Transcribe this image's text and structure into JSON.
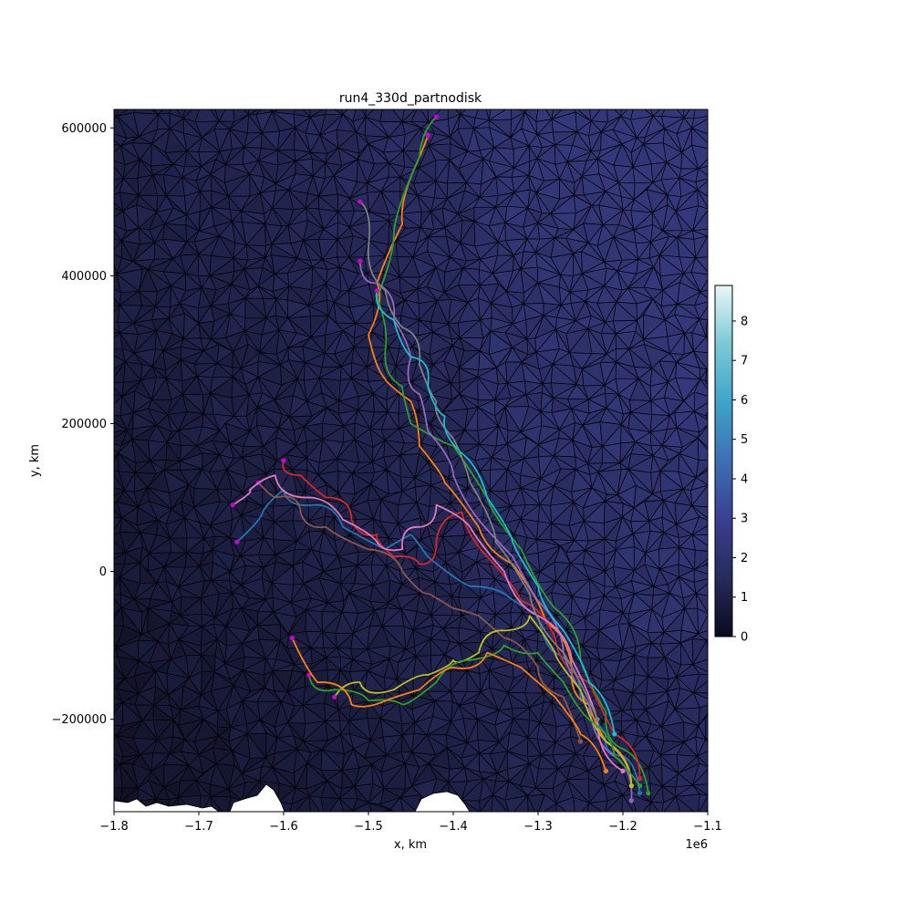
{
  "chart_data": {
    "type": "line",
    "title": "run4_330d_partnodisk",
    "xlabel": "x, km",
    "ylabel": "y, km",
    "x_offset_label": "1e6",
    "xlim": [
      -1.8,
      -1.1
    ],
    "ylim": [
      -325000,
      625000
    ],
    "x_ticks": [
      {
        "value": -1.8,
        "label": "−1.8"
      },
      {
        "value": -1.7,
        "label": "−1.7"
      },
      {
        "value": -1.6,
        "label": "−1.6"
      },
      {
        "value": -1.5,
        "label": "−1.5"
      },
      {
        "value": -1.4,
        "label": "−1.4"
      },
      {
        "value": -1.3,
        "label": "−1.3"
      },
      {
        "value": -1.2,
        "label": "−1.2"
      },
      {
        "value": -1.1,
        "label": "−1.1"
      }
    ],
    "y_ticks": [
      {
        "value": 600000,
        "label": "600000"
      },
      {
        "value": 400000,
        "label": "400000"
      },
      {
        "value": 200000,
        "label": "200000"
      },
      {
        "value": 0,
        "label": "0"
      },
      {
        "value": -200000,
        "label": "−200000"
      }
    ],
    "colorbar": {
      "range": [
        0,
        8.9
      ],
      "ticks": [
        0,
        1,
        2,
        3,
        4,
        5,
        6,
        7,
        8
      ],
      "tick_labels": [
        "0",
        "1",
        "2",
        "3",
        "4",
        "5",
        "6",
        "7",
        "8"
      ],
      "colormap_stops": [
        "#0a0a1e",
        "#262b5c",
        "#3a3f8f",
        "#3e6fb5",
        "#3fa3c9",
        "#7cc9d6",
        "#e8f7f7"
      ]
    },
    "mesh": {
      "edge_color": "#000000",
      "base_fill": "#2b2e60",
      "dark_fill": "#15162e"
    },
    "land_color": "#ffffff",
    "start_marker_color": "#cc00cc",
    "series_colors": [
      "#1f77b4",
      "#ff7f0e",
      "#2ca02c",
      "#d62728",
      "#9467bd",
      "#8c564b",
      "#e377c2",
      "#7f7f7f",
      "#bcbd22",
      "#17becf"
    ],
    "series": [
      {
        "color": "#1f77b4",
        "x": [
          -1.655,
          -1.625,
          -1.6,
          -1.565,
          -1.53,
          -1.48,
          -1.45,
          -1.43,
          -1.38,
          -1.34,
          -1.3,
          -1.28,
          -1.25,
          -1.22,
          -1.2,
          -1.18
        ],
        "y": [
          40000,
          80000,
          110000,
          90000,
          60000,
          30000,
          50000,
          20000,
          -20000,
          -30000,
          -60000,
          -110000,
          -170000,
          -220000,
          -250000,
          -300000
        ]
      },
      {
        "color": "#ff7f0e",
        "x": [
          -1.43,
          -1.44,
          -1.46,
          -1.49,
          -1.5,
          -1.48,
          -1.45,
          -1.44,
          -1.41,
          -1.37,
          -1.33,
          -1.29,
          -1.26,
          -1.24,
          -1.22,
          -1.19
        ],
        "y": [
          590000,
          560000,
          470000,
          390000,
          320000,
          260000,
          230000,
          170000,
          120000,
          60000,
          10000,
          -70000,
          -130000,
          -180000,
          -230000,
          -290000
        ]
      },
      {
        "color": "#2ca02c",
        "x": [
          -1.42,
          -1.44,
          -1.47,
          -1.49,
          -1.48,
          -1.46,
          -1.45,
          -1.4,
          -1.36,
          -1.32,
          -1.28,
          -1.25,
          -1.22,
          -1.2,
          -1.17
        ],
        "y": [
          615000,
          560000,
          460000,
          370000,
          300000,
          250000,
          200000,
          170000,
          100000,
          30000,
          -50000,
          -120000,
          -190000,
          -240000,
          -300000
        ]
      },
      {
        "color": "#d62728",
        "x": [
          -1.6,
          -1.58,
          -1.55,
          -1.52,
          -1.49,
          -1.47,
          -1.44,
          -1.42,
          -1.39,
          -1.36,
          -1.32,
          -1.28,
          -1.24,
          -1.21,
          -1.18
        ],
        "y": [
          150000,
          130000,
          100000,
          70000,
          50000,
          20000,
          10000,
          40000,
          80000,
          20000,
          -40000,
          -90000,
          -150000,
          -220000,
          -280000
        ]
      },
      {
        "color": "#9467bd",
        "x": [
          -1.51,
          -1.49,
          -1.47,
          -1.45,
          -1.44,
          -1.43,
          -1.4,
          -1.37,
          -1.33,
          -1.3,
          -1.27,
          -1.24,
          -1.21,
          -1.19
        ],
        "y": [
          420000,
          390000,
          340000,
          290000,
          240000,
          190000,
          130000,
          70000,
          20000,
          -40000,
          -110000,
          -180000,
          -250000,
          -310000
        ]
      },
      {
        "color": "#8c564b",
        "x": [
          -1.63,
          -1.61,
          -1.58,
          -1.55,
          -1.5,
          -1.46,
          -1.43,
          -1.4,
          -1.37,
          -1.34,
          -1.3,
          -1.27,
          -1.25
        ],
        "y": [
          120000,
          100000,
          80000,
          60000,
          30000,
          0,
          -30000,
          -50000,
          -60000,
          -90000,
          -130000,
          -170000,
          -230000
        ]
      },
      {
        "color": "#e377c2",
        "x": [
          -1.66,
          -1.64,
          -1.61,
          -1.57,
          -1.53,
          -1.49,
          -1.46,
          -1.44,
          -1.42,
          -1.38,
          -1.34,
          -1.3,
          -1.26,
          -1.23,
          -1.2
        ],
        "y": [
          90000,
          110000,
          130000,
          100000,
          70000,
          40000,
          30000,
          60000,
          90000,
          60000,
          0,
          -60000,
          -120000,
          -200000,
          -270000
        ]
      },
      {
        "color": "#7f7f7f",
        "x": [
          -1.51,
          -1.5,
          -1.48,
          -1.46,
          -1.44,
          -1.42,
          -1.4,
          -1.38,
          -1.35,
          -1.31,
          -1.27,
          -1.23
        ],
        "y": [
          500000,
          440000,
          380000,
          330000,
          280000,
          230000,
          180000,
          120000,
          40000,
          -30000,
          -110000,
          -200000
        ]
      },
      {
        "color": "#bcbd22",
        "x": [
          -1.54,
          -1.51,
          -1.47,
          -1.43,
          -1.4,
          -1.37,
          -1.34,
          -1.31,
          -1.28,
          -1.25,
          -1.22,
          -1.19
        ],
        "y": [
          -170000,
          -150000,
          -160000,
          -140000,
          -120000,
          -110000,
          -80000,
          -60000,
          -110000,
          -160000,
          -230000,
          -290000
        ]
      },
      {
        "color": "#17becf",
        "x": [
          -1.49,
          -1.47,
          -1.45,
          -1.43,
          -1.41,
          -1.39,
          -1.36,
          -1.33,
          -1.3,
          -1.27,
          -1.24,
          -1.21
        ],
        "y": [
          380000,
          340000,
          290000,
          250000,
          210000,
          160000,
          100000,
          40000,
          -20000,
          -80000,
          -150000,
          -220000
        ]
      },
      {
        "color": "#2ca02c",
        "x": [
          -1.57,
          -1.54,
          -1.5,
          -1.46,
          -1.42,
          -1.38,
          -1.34,
          -1.3,
          -1.27,
          -1.24,
          -1.21,
          -1.18
        ],
        "y": [
          -140000,
          -160000,
          -175000,
          -180000,
          -150000,
          -120000,
          -100000,
          -110000,
          -150000,
          -200000,
          -250000,
          -290000
        ]
      },
      {
        "color": "#ff7f0e",
        "x": [
          -1.59,
          -1.56,
          -1.52,
          -1.48,
          -1.44,
          -1.4,
          -1.36,
          -1.32,
          -1.28,
          -1.25,
          -1.22
        ],
        "y": [
          -90000,
          -150000,
          -180000,
          -175000,
          -160000,
          -130000,
          -110000,
          -130000,
          -170000,
          -220000,
          -270000
        ]
      }
    ]
  }
}
